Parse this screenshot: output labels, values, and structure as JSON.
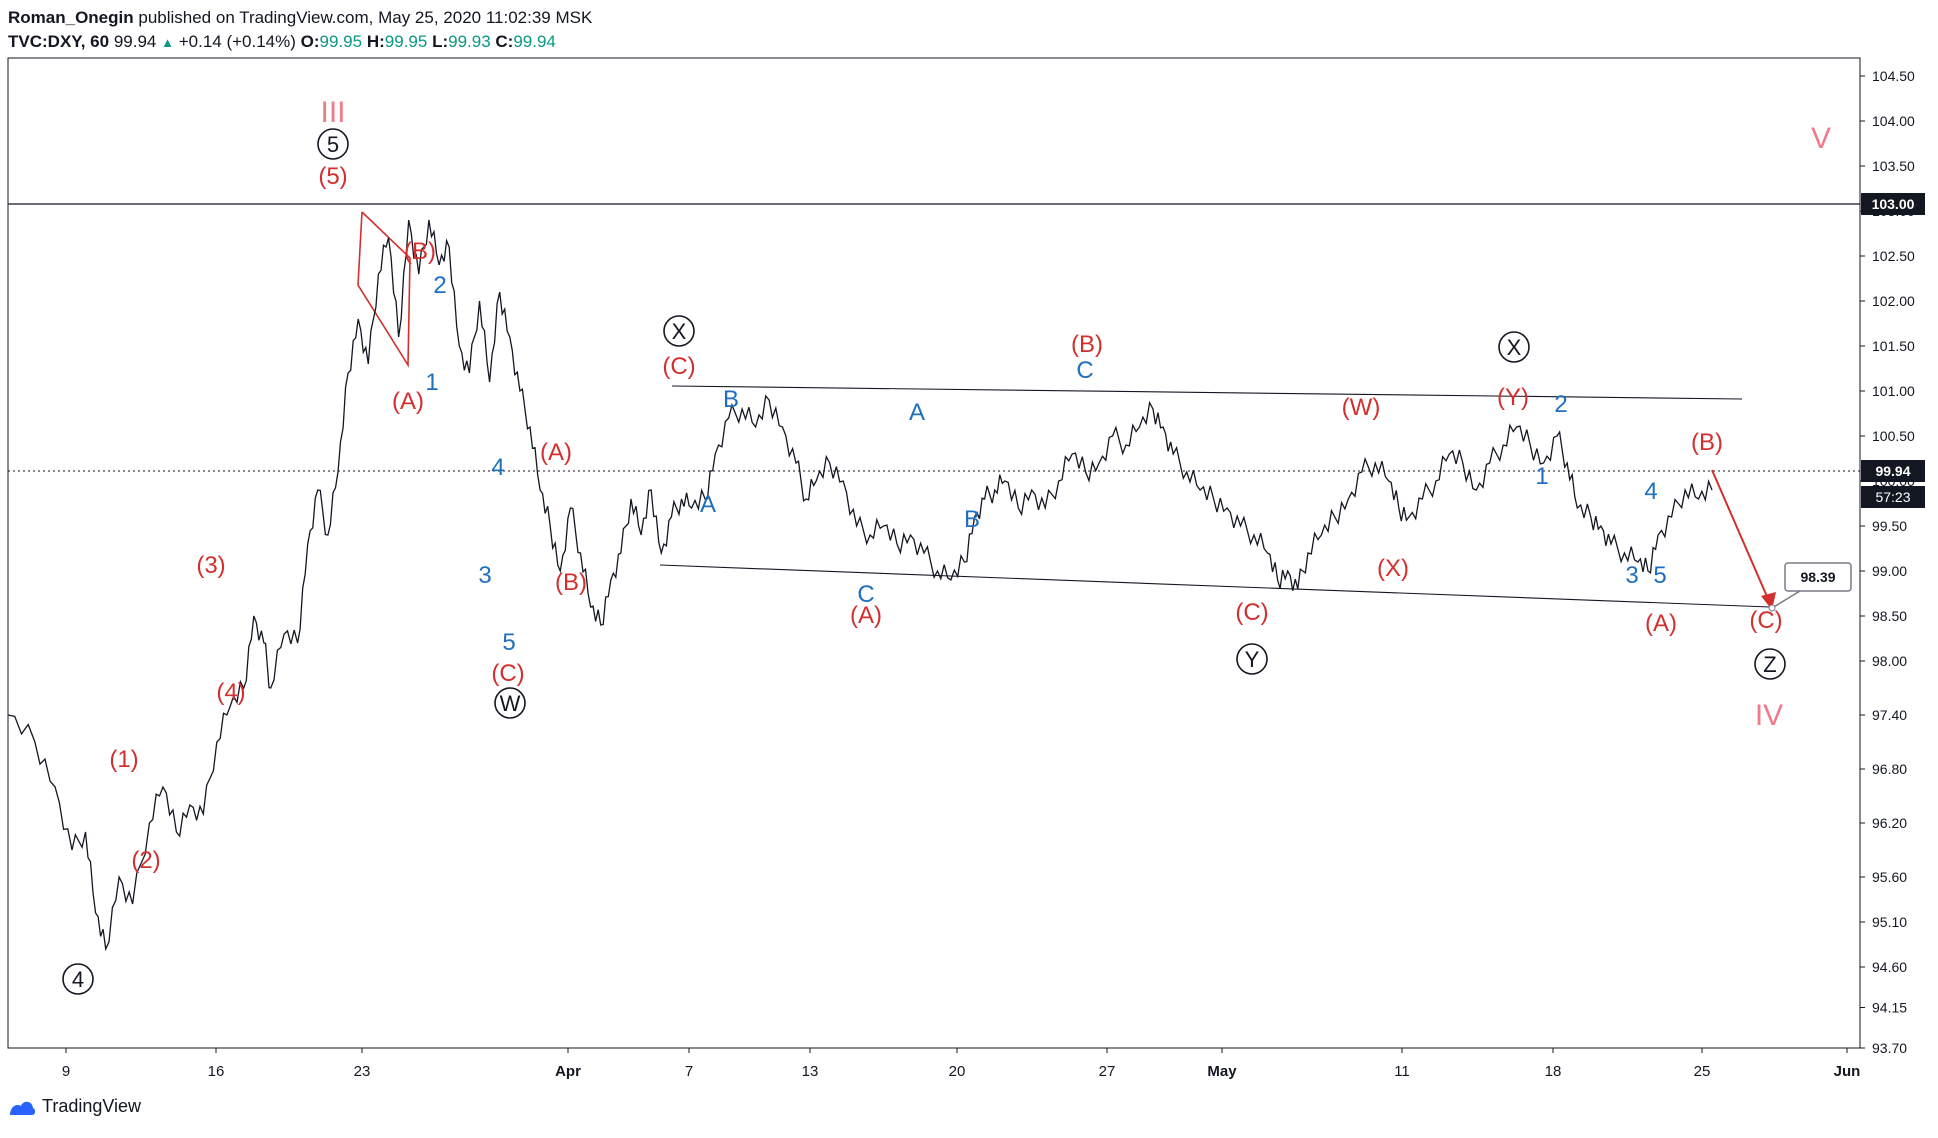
{
  "header": {
    "author": "Roman_Onegin",
    "published": "published on TradingView.com, May 25, 2020 11:02:39 MSK",
    "symbol": "TVC:DXY, 60",
    "last": "99.94",
    "change": "+0.14 (+0.14%)",
    "o_label": "O:",
    "o_value": "99.95",
    "h_label": "H:",
    "h_value": "99.95",
    "l_label": "L:",
    "l_value": "99.93",
    "c_label": "C:",
    "c_value": "99.94"
  },
  "footer": {
    "brand": "TradingView"
  },
  "colors": {
    "red": "#d32f2f",
    "blue": "#1e6fbf",
    "pink": "#ef7a8a",
    "line": "#131722",
    "axis": "#787b86"
  },
  "chart_data": {
    "type": "line",
    "title": "",
    "ylim": [
      93.7,
      104.7
    ],
    "y_ticks": [
      "104.50",
      "104.00",
      "103.50",
      "103.00",
      "102.50",
      "102.00",
      "101.50",
      "101.00",
      "100.50",
      "100.00",
      "99.50",
      "99.00",
      "98.50",
      "98.00",
      "97.40",
      "96.80",
      "96.20",
      "95.60",
      "95.10",
      "94.60",
      "94.15",
      "93.70"
    ],
    "x_ticks": [
      "9",
      "16",
      "23",
      "Apr",
      "7",
      "13",
      "20",
      "27",
      "May",
      "11",
      "18",
      "25",
      "Jun"
    ],
    "price_labels": {
      "horizontal_line": "103.00",
      "last": "99.94",
      "countdown": "57:23",
      "target": "98.39"
    },
    "series": [
      {
        "values": [
          [
            0,
            97.4
          ],
          [
            8,
            97.1
          ],
          [
            14,
            96.6
          ],
          [
            19,
            95.9
          ],
          [
            23,
            96.1
          ],
          [
            26,
            95.2
          ],
          [
            29,
            94.8
          ],
          [
            33,
            95.6
          ],
          [
            37,
            95.3
          ],
          [
            42,
            96.2
          ],
          [
            46,
            96.6
          ],
          [
            50,
            96.1
          ],
          [
            54,
            96.4
          ],
          [
            58,
            96.3
          ],
          [
            62,
            97.1
          ],
          [
            66,
            97.5
          ],
          [
            70,
            97.7
          ],
          [
            73,
            98.5
          ],
          [
            76,
            98.2
          ],
          [
            78,
            97.7
          ],
          [
            82,
            98.3
          ],
          [
            86,
            98.2
          ],
          [
            89,
            99.3
          ],
          [
            92,
            99.9
          ],
          [
            95,
            99.4
          ],
          [
            98,
            100.1
          ],
          [
            101,
            101.2
          ],
          [
            104,
            101.8
          ],
          [
            107,
            101.3
          ],
          [
            110,
            102.3
          ],
          [
            113,
            102.7
          ],
          [
            116,
            101.6
          ],
          [
            119,
            102.9
          ],
          [
            122,
            102.3
          ],
          [
            125,
            102.9
          ],
          [
            128,
            102.4
          ],
          [
            131,
            102.6
          ],
          [
            134,
            101.5
          ],
          [
            137,
            101.2
          ],
          [
            140,
            102.0
          ],
          [
            143,
            101.1
          ],
          [
            146,
            102.1
          ],
          [
            149,
            101.6
          ],
          [
            152,
            101.0
          ],
          [
            155,
            100.6
          ],
          [
            158,
            99.9
          ],
          [
            161,
            99.5
          ],
          [
            164,
            99.0
          ],
          [
            167,
            99.7
          ],
          [
            170,
            99.2
          ],
          [
            173,
            98.6
          ],
          [
            176,
            98.4
          ],
          [
            179,
            98.9
          ],
          [
            182,
            99.2
          ],
          [
            185,
            99.8
          ],
          [
            188,
            99.4
          ],
          [
            191,
            99.9
          ],
          [
            194,
            99.2
          ],
          [
            197,
            99.6
          ],
          [
            200,
            99.8
          ],
          [
            203,
            99.7
          ],
          [
            207,
            99.8
          ],
          [
            210,
            100.3
          ],
          [
            214,
            100.7
          ],
          [
            218,
            100.8
          ],
          [
            222,
            100.6
          ],
          [
            226,
            100.9
          ],
          [
            230,
            100.6
          ],
          [
            234,
            100.2
          ],
          [
            237,
            99.8
          ],
          [
            240,
            100.0
          ],
          [
            244,
            100.2
          ],
          [
            248,
            100.0
          ],
          [
            252,
            99.5
          ],
          [
            256,
            99.4
          ],
          [
            260,
            99.5
          ],
          [
            264,
            99.3
          ],
          [
            268,
            99.4
          ],
          [
            272,
            99.2
          ],
          [
            276,
            99.0
          ],
          [
            280,
            98.9
          ],
          [
            284,
            99.1
          ],
          [
            287,
            99.6
          ],
          [
            290,
            99.8
          ],
          [
            293,
            99.9
          ],
          [
            296,
            100.0
          ],
          [
            300,
            99.7
          ],
          [
            304,
            99.9
          ],
          [
            308,
            99.7
          ],
          [
            312,
            100.0
          ],
          [
            316,
            100.3
          ],
          [
            320,
            100.1
          ],
          [
            324,
            100.2
          ],
          [
            328,
            100.5
          ],
          [
            332,
            100.4
          ],
          [
            336,
            100.6
          ],
          [
            340,
            100.8
          ],
          [
            343,
            100.6
          ],
          [
            346,
            100.3
          ],
          [
            350,
            100.1
          ],
          [
            354,
            99.9
          ],
          [
            358,
            99.8
          ],
          [
            362,
            99.7
          ],
          [
            366,
            99.5
          ],
          [
            370,
            99.4
          ],
          [
            374,
            99.2
          ],
          [
            377,
            98.9
          ],
          [
            380,
            99.0
          ],
          [
            383,
            98.8
          ],
          [
            386,
            99.2
          ],
          [
            390,
            99.4
          ],
          [
            394,
            99.6
          ],
          [
            398,
            99.8
          ],
          [
            402,
            100.1
          ],
          [
            406,
            100.2
          ],
          [
            410,
            100.0
          ],
          [
            413,
            99.7
          ],
          [
            416,
            99.6
          ],
          [
            420,
            99.8
          ],
          [
            424,
            100.0
          ],
          [
            428,
            100.3
          ],
          [
            432,
            100.2
          ],
          [
            436,
            99.9
          ],
          [
            440,
            100.2
          ],
          [
            444,
            100.4
          ],
          [
            448,
            100.6
          ],
          [
            452,
            100.4
          ],
          [
            456,
            100.2
          ],
          [
            460,
            100.5
          ],
          [
            463,
            100.2
          ],
          [
            466,
            99.7
          ],
          [
            470,
            99.6
          ],
          [
            473,
            99.5
          ],
          [
            476,
            99.3
          ],
          [
            480,
            99.2
          ],
          [
            484,
            99.1
          ],
          [
            487,
            99.0
          ],
          [
            490,
            99.4
          ],
          [
            494,
            99.6
          ],
          [
            498,
            99.9
          ],
          [
            502,
            99.8
          ],
          [
            506,
            99.9
          ]
        ]
      }
    ]
  },
  "waves": {
    "III": "III",
    "V": "V",
    "IV": "IV",
    "c5": "5",
    "c4": "4",
    "cX": "X",
    "cW": "W",
    "cY": "Y",
    "cX2": "X",
    "cZ": "Z",
    "r5": "(5)",
    "rB1": "(B)",
    "rA1": "(A)",
    "r3": "(3)",
    "r4": "(4)",
    "r1": "(1)",
    "r2": "(2)",
    "rA2": "(A)",
    "rB2": "(B)",
    "rC1": "(C)",
    "rC2": "(C)",
    "rB3": "(B)",
    "rA3": "(A)",
    "rC3": "(C)",
    "rW": "(W)",
    "rX": "(X)",
    "rY": "(Y)",
    "rB4": "(B)",
    "rA4": "(A)",
    "rC4": "(C)",
    "b2": "2",
    "b1": "1",
    "b4": "4",
    "b3": "3",
    "b5": "5",
    "bA1": "A",
    "bB1": "B",
    "bC1": "C",
    "bA2": "A",
    "bB2": "B",
    "bC2": "C",
    "b1b": "1",
    "b2b": "2",
    "b3b": "3",
    "b4b": "4",
    "b5b": "5"
  }
}
